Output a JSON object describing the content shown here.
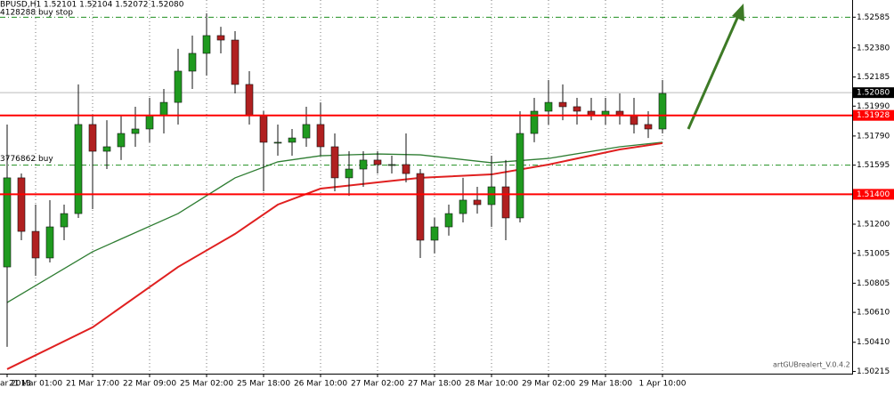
{
  "chart_data": {
    "type": "candlestick",
    "title": "BPUSD,H1  1.52101 1.52104 1.52072 1.52080",
    "footer": "artGUBrealert_V.0.4.2",
    "ylim": [
      1.502,
      1.527
    ],
    "yticks": [
      {
        "value": 1.52585,
        "label": "1.52585"
      },
      {
        "value": 1.5238,
        "label": "1.52380"
      },
      {
        "value": 1.52185,
        "label": "1.52185"
      },
      {
        "value": 1.5199,
        "label": "1.51990"
      },
      {
        "value": 1.5179,
        "label": "1.51790"
      },
      {
        "value": 1.51595,
        "label": "1.51595"
      },
      {
        "value": 1.512,
        "label": "1.51200"
      },
      {
        "value": 1.51005,
        "label": "1.51005"
      },
      {
        "value": 1.50805,
        "label": "1.50805"
      },
      {
        "value": 1.5061,
        "label": "1.50610"
      },
      {
        "value": 1.5041,
        "label": "1.50410"
      },
      {
        "value": 1.50215,
        "label": "1.50215"
      }
    ],
    "grid": true,
    "up_color": "#1f9a1f",
    "down_color": "#b02020",
    "categories": [
      "ar 2013",
      null,
      "21 Mar 01:00",
      null,
      null,
      null,
      "21 Mar 17:00",
      null,
      null,
      null,
      "22 Mar 09:00",
      null,
      null,
      null,
      "25 Mar 02:00",
      null,
      null,
      null,
      "25 Mar 18:00",
      null,
      null,
      null,
      "26 Mar 10:00",
      null,
      null,
      null,
      "27 Mar 02:00",
      null,
      null,
      null,
      "27 Mar 18:00",
      null,
      null,
      null,
      "28 Mar 10:00",
      null,
      null,
      null,
      "29 Mar 02:00",
      null,
      null,
      null,
      "29 Mar 18:00",
      null,
      null,
      null,
      "1 Apr 10:00"
    ],
    "open": [
      1.50914,
      1.5151,
      1.51152,
      1.50974,
      1.51182,
      1.51271,
      1.51867,
      1.51688,
      1.51718,
      1.51807,
      1.51837,
      1.51926,
      1.52015,
      1.52224,
      1.52343,
      1.52462,
      1.52432,
      1.52135,
      1.51926,
      1.51748,
      1.51748,
      1.51777,
      1.51867,
      1.51718,
      1.5151,
      1.51569,
      1.51629,
      1.51599,
      1.51599,
      1.51539,
      1.51093,
      1.51182,
      1.51271,
      1.51361,
      1.51331,
      1.5145,
      1.51242,
      1.51807,
      1.51956,
      1.52015,
      1.51986,
      1.51956,
      1.51926,
      1.51956,
      1.51926,
      1.51867,
      1.51837
    ],
    "high": [
      1.51867,
      1.51539,
      1.51331,
      1.51361,
      1.51331,
      1.52135,
      1.51926,
      1.51896,
      1.51926,
      1.51986,
      1.52045,
      1.52105,
      1.52373,
      1.52462,
      1.52611,
      1.52521,
      1.52492,
      1.52224,
      1.51956,
      1.51867,
      1.51837,
      1.51986,
      1.52015,
      1.51807,
      1.51688,
      1.51688,
      1.51688,
      1.51658,
      1.51807,
      1.51569,
      1.51242,
      1.51331,
      1.5151,
      1.5145,
      1.51658,
      1.51629,
      1.51956,
      1.52045,
      1.52164,
      1.52135,
      1.52045,
      1.52045,
      1.52045,
      1.52075,
      1.52045,
      1.51956,
      1.52164
    ],
    "low": [
      1.50379,
      1.51093,
      1.50855,
      1.50944,
      1.51093,
      1.51242,
      1.51301,
      1.51569,
      1.51629,
      1.51718,
      1.51748,
      1.51807,
      1.51867,
      1.52105,
      1.52194,
      1.52343,
      1.52075,
      1.51867,
      1.5142,
      1.51658,
      1.51658,
      1.51718,
      1.51658,
      1.5142,
      1.5139,
      1.5145,
      1.51539,
      1.51539,
      1.5148,
      1.50974,
      1.51004,
      1.51123,
      1.51212,
      1.51271,
      1.51182,
      1.51093,
      1.51212,
      1.51748,
      1.51867,
      1.51896,
      1.51867,
      1.51896,
      1.51867,
      1.51867,
      1.51807,
      1.51777,
      1.51807
    ],
    "close": [
      1.5151,
      1.51152,
      1.50974,
      1.51182,
      1.51271,
      1.51867,
      1.51688,
      1.51718,
      1.51807,
      1.51837,
      1.51926,
      1.52015,
      1.52224,
      1.52343,
      1.52462,
      1.52432,
      1.52135,
      1.51926,
      1.51748,
      1.51748,
      1.51777,
      1.51867,
      1.51718,
      1.5151,
      1.51569,
      1.51629,
      1.51599,
      1.51599,
      1.51539,
      1.51093,
      1.51182,
      1.51271,
      1.51361,
      1.51331,
      1.5145,
      1.51242,
      1.51807,
      1.51956,
      1.52015,
      1.51986,
      1.51956,
      1.51926,
      1.51956,
      1.51926,
      1.51867,
      1.51837,
      1.52075
    ],
    "series": [
      {
        "color": "#2e7d32",
        "x": [
          0,
          6,
          12,
          16,
          19,
          22,
          26,
          29,
          34,
          38,
          43,
          46
        ],
        "values": [
          1.50676,
          1.51016,
          1.51271,
          1.5151,
          1.51617,
          1.51658,
          1.5167,
          1.51664,
          1.51611,
          1.5164,
          1.51718,
          1.51748
        ]
      },
      {
        "color": "#e02020",
        "x": [
          0,
          6,
          12,
          16,
          19,
          22,
          26,
          29,
          34,
          38,
          43,
          46
        ],
        "values": [
          1.5023,
          1.5051,
          1.50914,
          1.51135,
          1.51331,
          1.51438,
          1.5148,
          1.5151,
          1.51533,
          1.51599,
          1.517,
          1.51742
        ]
      }
    ],
    "levels": [
      {
        "value": 1.51928,
        "label": "1.51928"
      },
      {
        "value": 1.514,
        "label": "1.51400"
      }
    ],
    "level_color": "#ff0000",
    "current_price": {
      "value": 1.5208,
      "label": "1.52080"
    },
    "orders": [
      {
        "label": "4128288 buy stop",
        "value": 1.52585
      },
      {
        "label": "3776862 buy",
        "value": 1.51595
      }
    ]
  }
}
